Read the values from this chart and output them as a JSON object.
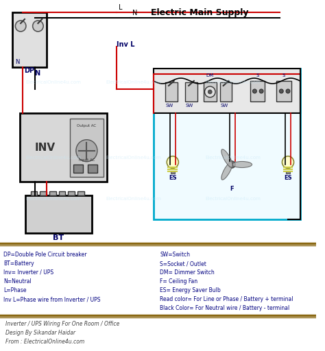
{
  "title": "Electric Main Supply",
  "bg_color": "#ffffff",
  "diagram_bg": "#e8f8ff",
  "border_color": "#000000",
  "legend_left": [
    "DP=Double Pole Circuit breaker",
    "BT=Battery",
    "Inv= Inverter / UPS",
    "N=Neutral",
    "L=Phase",
    "Inv L=Phase wire from Inverter / UPS"
  ],
  "legend_right": [
    "SW=Switch",
    "S=Socket / Outlet",
    "DM= Dimmer Switch",
    "F= Ceiling Fan",
    "ES= Energy Saver Bulb",
    "Read color= For Line or Phase / Battery + terminal",
    "Black Color= For Neutral wire / Battery - terminal"
  ],
  "footer_lines": [
    "Inverter / UPS Wiring For One Room / Office",
    "Design By Sikandar Haidar",
    "From : ElectricalOnline4u.com"
  ],
  "line_color": "#cc0000",
  "neutral_color": "#000000",
  "box_color": "#00aacc",
  "separator_color": "#8B6914",
  "text_color_dark": "#000066",
  "text_color_legend": "#000080"
}
